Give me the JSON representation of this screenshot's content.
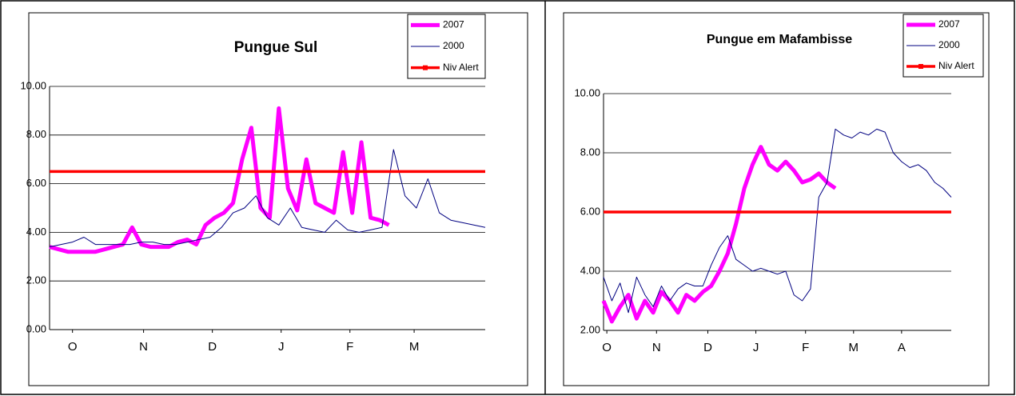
{
  "chart_data": [
    {
      "type": "line",
      "title": "Pungue Sul",
      "xlim": [
        0,
        190
      ],
      "xticks": [
        {
          "value": 10,
          "label": "O"
        },
        {
          "value": 41,
          "label": "N"
        },
        {
          "value": 71,
          "label": "D"
        },
        {
          "value": 101,
          "label": "J"
        },
        {
          "value": 131,
          "label": "F"
        },
        {
          "value": 159,
          "label": "M"
        }
      ],
      "ylim": [
        0,
        10
      ],
      "yticks": [
        {
          "value": 0,
          "label": "0.00"
        },
        {
          "value": 2,
          "label": "2.00"
        },
        {
          "value": 4,
          "label": "4.00"
        },
        {
          "value": 6,
          "label": "6.00"
        },
        {
          "value": 8,
          "label": "8.00"
        },
        {
          "value": 10,
          "label": "10.00"
        }
      ],
      "grid": true,
      "series": [
        {
          "name": "2007",
          "color": "#ff00ff",
          "x": [
            0,
            4,
            8,
            12,
            16,
            20,
            24,
            28,
            32,
            36,
            40,
            44,
            48,
            52,
            56,
            60,
            64,
            68,
            72,
            76,
            80,
            84,
            88,
            92,
            96,
            100,
            104,
            108,
            112,
            116,
            120,
            124,
            128,
            132,
            136,
            140,
            144,
            148
          ],
          "values": [
            3.4,
            3.3,
            3.2,
            3.2,
            3.2,
            3.2,
            3.3,
            3.4,
            3.5,
            4.2,
            3.5,
            3.4,
            3.4,
            3.4,
            3.6,
            3.7,
            3.5,
            4.3,
            4.6,
            4.8,
            5.2,
            7.0,
            8.3,
            5.0,
            4.6,
            9.1,
            5.8,
            4.9,
            7.0,
            5.2,
            5.0,
            4.8,
            7.3,
            4.8,
            7.7,
            4.6,
            4.5,
            4.3
          ]
        },
        {
          "name": "2000",
          "color": "#000080",
          "x": [
            0,
            5,
            10,
            15,
            20,
            25,
            30,
            35,
            40,
            45,
            50,
            55,
            60,
            65,
            70,
            75,
            80,
            85,
            90,
            95,
            100,
            105,
            110,
            115,
            120,
            125,
            130,
            135,
            140,
            145,
            150,
            155,
            160,
            165,
            170,
            175,
            180,
            185,
            190
          ],
          "values": [
            3.4,
            3.5,
            3.6,
            3.8,
            3.5,
            3.5,
            3.5,
            3.5,
            3.6,
            3.6,
            3.5,
            3.5,
            3.6,
            3.7,
            3.8,
            4.2,
            4.8,
            5.0,
            5.5,
            4.6,
            4.3,
            5.0,
            4.2,
            4.1,
            4.0,
            4.5,
            4.1,
            4.0,
            4.1,
            4.2,
            7.4,
            5.5,
            5.0,
            6.2,
            4.8,
            4.5,
            4.4,
            4.3,
            4.2
          ]
        },
        {
          "name": "Niv Alert",
          "color": "#ff0000",
          "x": [
            0,
            190
          ],
          "values": [
            6.5,
            6.5
          ]
        }
      ]
    },
    {
      "type": "line",
      "title": "Pungue em Mafambisse",
      "xlim": [
        0,
        210
      ],
      "xticks": [
        {
          "value": 2,
          "label": "O"
        },
        {
          "value": 32,
          "label": "N"
        },
        {
          "value": 63,
          "label": "D"
        },
        {
          "value": 92,
          "label": "J"
        },
        {
          "value": 122,
          "label": "F"
        },
        {
          "value": 151,
          "label": "M"
        },
        {
          "value": 180,
          "label": "A"
        }
      ],
      "ylim": [
        2,
        10
      ],
      "yticks": [
        {
          "value": 2,
          "label": "2.00"
        },
        {
          "value": 4,
          "label": "4.00"
        },
        {
          "value": 6,
          "label": "6.00"
        },
        {
          "value": 8,
          "label": "8.00"
        },
        {
          "value": 10,
          "label": "10.00"
        }
      ],
      "grid": true,
      "series": [
        {
          "name": "2007",
          "color": "#ff00ff",
          "x": [
            0,
            5,
            10,
            15,
            20,
            25,
            30,
            35,
            40,
            45,
            50,
            55,
            60,
            65,
            70,
            75,
            80,
            85,
            90,
            95,
            100,
            105,
            110,
            115,
            120,
            125,
            130,
            135,
            140
          ],
          "values": [
            3.0,
            2.3,
            2.8,
            3.2,
            2.4,
            3.0,
            2.6,
            3.3,
            3.0,
            2.6,
            3.2,
            3.0,
            3.3,
            3.5,
            4.0,
            4.6,
            5.6,
            6.8,
            7.6,
            8.2,
            7.6,
            7.4,
            7.7,
            7.4,
            7.0,
            7.1,
            7.3,
            7.0,
            6.8
          ]
        },
        {
          "name": "2000",
          "color": "#000080",
          "x": [
            0,
            5,
            10,
            15,
            20,
            25,
            30,
            35,
            40,
            45,
            50,
            55,
            60,
            65,
            70,
            75,
            80,
            85,
            90,
            95,
            100,
            105,
            110,
            115,
            120,
            125,
            130,
            135,
            140,
            145,
            150,
            155,
            160,
            165,
            170,
            175,
            180,
            185,
            190,
            195,
            200,
            205,
            210
          ],
          "values": [
            3.8,
            3.0,
            3.6,
            2.6,
            3.8,
            3.2,
            2.8,
            3.5,
            3.0,
            3.4,
            3.6,
            3.5,
            3.5,
            4.2,
            4.8,
            5.2,
            4.4,
            4.2,
            4.0,
            4.1,
            4.0,
            3.9,
            4.0,
            3.2,
            3.0,
            3.4,
            6.5,
            7.0,
            8.8,
            8.6,
            8.5,
            8.7,
            8.6,
            8.8,
            8.7,
            8.0,
            7.7,
            7.5,
            7.6,
            7.4,
            7.0,
            6.8,
            6.5
          ]
        },
        {
          "name": "Niv Alert",
          "color": "#ff0000",
          "x": [
            0,
            210
          ],
          "values": [
            6.0,
            6.0
          ]
        }
      ]
    }
  ]
}
